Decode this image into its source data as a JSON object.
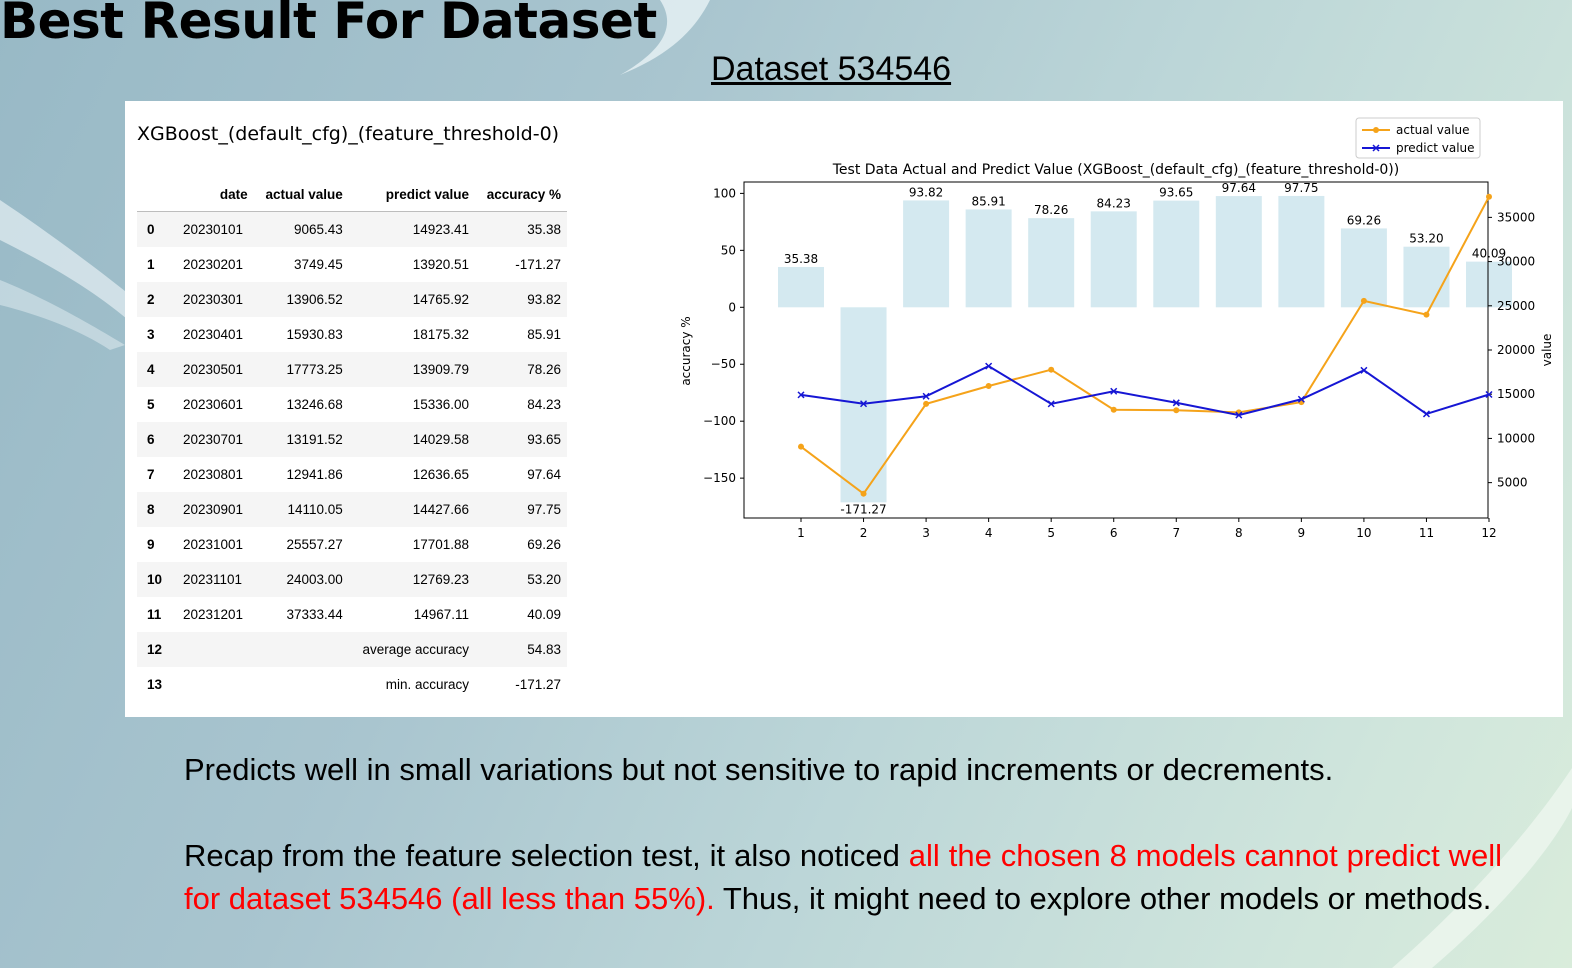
{
  "slide": {
    "title": "Best Result For Dataset",
    "subtitle": "Dataset 534546"
  },
  "table": {
    "title": "XGBoost_(default_cfg)_(feature_threshold-0)",
    "columns": [
      "",
      "date",
      "actual value",
      "predict value",
      "accuracy %"
    ],
    "rows": [
      [
        "0",
        "20230101",
        "9065.43",
        "14923.41",
        "35.38"
      ],
      [
        "1",
        "20230201",
        "3749.45",
        "13920.51",
        "-171.27"
      ],
      [
        "2",
        "20230301",
        "13906.52",
        "14765.92",
        "93.82"
      ],
      [
        "3",
        "20230401",
        "15930.83",
        "18175.32",
        "85.91"
      ],
      [
        "4",
        "20230501",
        "17773.25",
        "13909.79",
        "78.26"
      ],
      [
        "5",
        "20230601",
        "13246.68",
        "15336.00",
        "84.23"
      ],
      [
        "6",
        "20230701",
        "13191.52",
        "14029.58",
        "93.65"
      ],
      [
        "7",
        "20230801",
        "12941.86",
        "12636.65",
        "97.64"
      ],
      [
        "8",
        "20230901",
        "14110.05",
        "14427.66",
        "97.75"
      ],
      [
        "9",
        "20231001",
        "25557.27",
        "17701.88",
        "69.26"
      ],
      [
        "10",
        "20231101",
        "24003.00",
        "12769.23",
        "53.20"
      ],
      [
        "11",
        "20231201",
        "37333.44",
        "14967.11",
        "40.09"
      ],
      [
        "12",
        "",
        "",
        "average accuracy",
        "54.83"
      ],
      [
        "13",
        "",
        "",
        "min. accuracy",
        "-171.27"
      ]
    ]
  },
  "chart_data": {
    "type": "bar",
    "title": "Test Data Actual and Predict Value (XGBoost_(default_cfg)_(feature_threshold-0))",
    "xlabel": "",
    "ylabel": "accuracy %",
    "y2label": "value",
    "categories": [
      "1",
      "2",
      "3",
      "4",
      "5",
      "6",
      "7",
      "8",
      "9",
      "10",
      "11",
      "12"
    ],
    "bar_series": {
      "values": [
        35.38,
        -171.27,
        93.82,
        85.91,
        78.26,
        84.23,
        93.65,
        97.64,
        97.75,
        69.26,
        53.2,
        40.09
      ],
      "labels": [
        "35.38",
        "-171.27",
        "93.82",
        "85.91",
        "78.26",
        "84.23",
        "93.65",
        "97.64",
        "97.75",
        "69.26",
        "53.20",
        "40.09"
      ],
      "color": "#d4e9f0"
    },
    "series": [
      {
        "name": "actual value",
        "axis": "right",
        "color": "#f5a31a",
        "marker": "dot",
        "values": [
          9065.43,
          3749.45,
          13906.52,
          15930.83,
          17773.25,
          13246.68,
          13191.52,
          12941.86,
          14110.05,
          25557.27,
          24003.0,
          37333.44
        ]
      },
      {
        "name": "predict value",
        "axis": "right",
        "color": "#1616d4",
        "marker": "x",
        "values": [
          14923.41,
          13920.51,
          14765.92,
          18175.32,
          13909.79,
          15336.0,
          14029.58,
          12636.65,
          14427.66,
          17701.88,
          12769.23,
          14967.11
        ]
      }
    ],
    "ylim": [
      -185,
      110
    ],
    "y2lim": [
      1000,
      39000
    ],
    "yticks": [
      "100",
      "50",
      "0",
      "−50",
      "−100",
      "−150"
    ],
    "y2ticks": [
      "35000",
      "30000",
      "25000",
      "20000",
      "15000",
      "10000",
      "5000"
    ],
    "legend": "top-right",
    "grid": false
  },
  "notes": {
    "p1": "Predicts well in small variations but not sensitive to rapid increments or decrements.",
    "p2_a": "Recap from the feature selection test, it also noticed ",
    "p2_red": "all the chosen 8 models cannot predict well for dataset 534546 (all less than 55%).",
    "p2_b": " Thus, it might need to explore other models or methods."
  }
}
